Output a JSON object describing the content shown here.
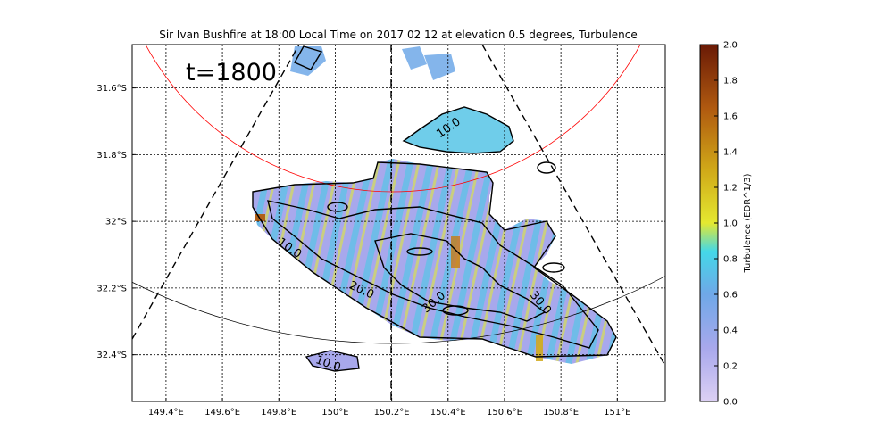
{
  "chart_data": {
    "type": "heatmap",
    "title": "Sir Ivan Bushfire at 18:00 Local Time on 2017 02 12 at elevation 0.5 degrees, Turbulence",
    "annotation": "t=1800",
    "xlim": [
      149.28,
      151.17
    ],
    "ylim": [
      -32.54,
      -31.47
    ],
    "x_ticks": [
      {
        "value": 149.4,
        "label": "149.4°E"
      },
      {
        "value": 149.6,
        "label": "149.6°E"
      },
      {
        "value": 149.8,
        "label": "149.8°E"
      },
      {
        "value": 150.0,
        "label": "150°E"
      },
      {
        "value": 150.2,
        "label": "150.2°E"
      },
      {
        "value": 150.4,
        "label": "150.4°E"
      },
      {
        "value": 150.6,
        "label": "150.6°E"
      },
      {
        "value": 150.8,
        "label": "150.8°E"
      },
      {
        "value": 151.0,
        "label": "151°E"
      }
    ],
    "y_ticks": [
      {
        "value": -31.6,
        "label": "31.6°S"
      },
      {
        "value": -31.8,
        "label": "31.8°S"
      },
      {
        "value": -32.0,
        "label": "32°S"
      },
      {
        "value": -32.2,
        "label": "32.2°S"
      },
      {
        "value": -32.4,
        "label": "32.4°S"
      }
    ],
    "grid": true,
    "colorbar": {
      "label": "Turbulence (EDR^1/3)",
      "min": 0.0,
      "max": 2.0,
      "ticks": [
        "0.0",
        "0.2",
        "0.4",
        "0.6",
        "0.8",
        "1.0",
        "1.2",
        "1.4",
        "1.6",
        "1.8",
        "2.0"
      ],
      "stops": [
        "#dcd0f4",
        "#a8a8ec",
        "#6fa8e8",
        "#44d8e8",
        "#e4e830",
        "#d0a818",
        "#b05a10",
        "#6a1a06"
      ]
    },
    "contour_labels": [
      "10.0",
      "10.0",
      "20.0",
      "30.0",
      "30.0",
      "10.0"
    ],
    "range_ring_color": "#ff0000"
  }
}
